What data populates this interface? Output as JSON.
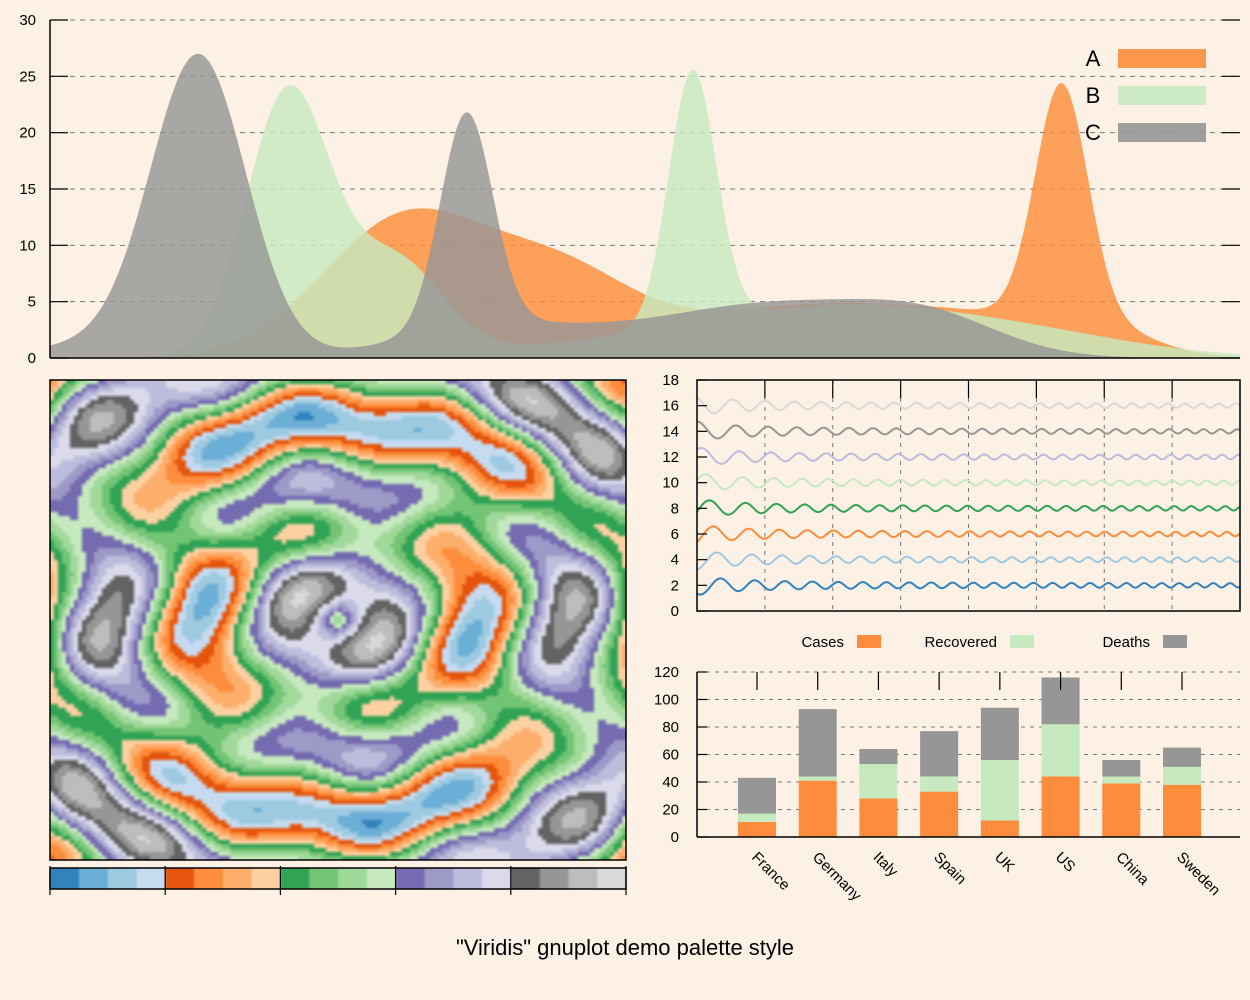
{
  "page": {
    "title": "\"Viridis\" gnuplot demo palette style"
  },
  "colors": {
    "background": "#fdf0e4",
    "blue": "#3182bd",
    "lightblue": "#9ecae1",
    "orange": "#fd8d3c",
    "orange_dark": "#e6550d",
    "green": "#31a354",
    "lightgreen": "#c7e9c0",
    "green_mid": "#74c476",
    "purple": "#756bb1",
    "lightpurple": "#bcbddc",
    "gray": "#969696",
    "lightgray": "#d9d9d9",
    "darkgray": "#636363"
  },
  "chart_data": [
    {
      "id": "density",
      "type": "area",
      "title": "",
      "xlabel": "",
      "ylabel": "",
      "x": {
        "min": 0,
        "max": 1000,
        "ticks_shown": false
      },
      "ylim": [
        0,
        30
      ],
      "yticks": [
        "0",
        "5",
        "10",
        "15",
        "20",
        "25",
        "30"
      ],
      "grid": "dashed horizontal",
      "legend": {
        "position": "top-right",
        "entries": [
          "A",
          "B",
          "C"
        ]
      },
      "series": [
        {
          "name": "A",
          "color": "#fd8d3c",
          "components": [
            {
              "center": 300,
              "width": 70,
              "height": 12.5
            },
            {
              "center": 430,
              "width": 60,
              "height": 6.5
            },
            {
              "center": 560,
              "width": 80,
              "height": 2.5
            },
            {
              "center": 680,
              "width": 80,
              "height": 3.5
            },
            {
              "center": 800,
              "width": 70,
              "height": 2.5
            },
            {
              "center": 850,
              "width": 22,
              "height": 20.5
            },
            {
              "center": 880,
              "width": 45,
              "height": 2.0
            }
          ]
        },
        {
          "name": "B",
          "color": "#c7e9c0",
          "components": [
            {
              "center": 200,
              "width": 35,
              "height": 23.5
            },
            {
              "center": 290,
              "width": 40,
              "height": 8.5
            },
            {
              "center": 520,
              "width": 110,
              "height": 1.8
            },
            {
              "center": 540,
              "width": 20,
              "height": 22.5
            },
            {
              "center": 660,
              "width": 90,
              "height": 3.0
            },
            {
              "center": 800,
              "width": 100,
              "height": 2.5
            }
          ]
        },
        {
          "name": "C",
          "color": "#969696",
          "components": [
            {
              "center": 125,
              "width": 40,
              "height": 26.5
            },
            {
              "center": 45,
              "width": 60,
              "height": 1.2
            },
            {
              "center": 350,
              "width": 22,
              "height": 19.0
            },
            {
              "center": 360,
              "width": 70,
              "height": 2.0
            },
            {
              "center": 470,
              "width": 100,
              "height": 1.6
            },
            {
              "center": 620,
              "width": 90,
              "height": 4.2
            },
            {
              "center": 740,
              "width": 60,
              "height": 2.8
            }
          ]
        }
      ]
    },
    {
      "id": "waves",
      "type": "line",
      "title": "",
      "xlabel": "",
      "ylabel": "",
      "x": {
        "min": 0,
        "max": 8,
        "ticks_shown": false
      },
      "ylim": [
        0,
        18
      ],
      "yticks": [
        "0",
        "2",
        "4",
        "6",
        "8",
        "10",
        "12",
        "14",
        "16",
        "18"
      ],
      "grid": "dashed vertical",
      "series": [
        {
          "offset": 2,
          "color": "#3182bd"
        },
        {
          "offset": 4,
          "color": "#9ecae1"
        },
        {
          "offset": 6,
          "color": "#fd8d3c"
        },
        {
          "offset": 8,
          "color": "#31a354"
        },
        {
          "offset": 10,
          "color": "#c7e9c0"
        },
        {
          "offset": 12,
          "color": "#bcbddc"
        },
        {
          "offset": 14,
          "color": "#969696"
        },
        {
          "offset": 16,
          "color": "#d9d9d9"
        }
      ]
    },
    {
      "id": "stacked",
      "type": "bar",
      "title": "",
      "xlabel": "",
      "ylabel": "",
      "categories": [
        "France",
        "Germany",
        "Italy",
        "Spain",
        "UK",
        "US",
        "China",
        "Sweden"
      ],
      "ylim": [
        0,
        120
      ],
      "yticks": [
        "0",
        "20",
        "40",
        "60",
        "80",
        "100",
        "120"
      ],
      "grid": "dashed horizontal",
      "legend": {
        "position": "top"
      },
      "series": [
        {
          "name": "Cases",
          "color": "#fd8d3c",
          "values": [
            11,
            41,
            28,
            33,
            12,
            44,
            39,
            38
          ]
        },
        {
          "name": "Recovered",
          "color": "#c7e9c0",
          "values": [
            6,
            3,
            25,
            11,
            44,
            38,
            5,
            13
          ]
        },
        {
          "name": "Deaths",
          "color": "#969696",
          "values": [
            26,
            49,
            11,
            33,
            38,
            34,
            12,
            14
          ]
        }
      ]
    },
    {
      "id": "heatmap",
      "type": "heatmap",
      "title": "",
      "xlabel": "",
      "ylabel": "",
      "palette_bands": [
        [
          "#3182bd",
          "#6baed6",
          "#9ecae1",
          "#c6dbef"
        ],
        [
          "#e6550d",
          "#fd8d3c",
          "#fdae6b",
          "#fdd0a2"
        ],
        [
          "#31a354",
          "#74c476",
          "#a1d99b",
          "#c7e9c0"
        ],
        [
          "#756bb1",
          "#9e9ac8",
          "#bcbddc",
          "#dadaeb"
        ],
        [
          "#636363",
          "#969696",
          "#bdbdbd",
          "#d9d9d9"
        ]
      ],
      "colorbar_shown": true
    }
  ]
}
